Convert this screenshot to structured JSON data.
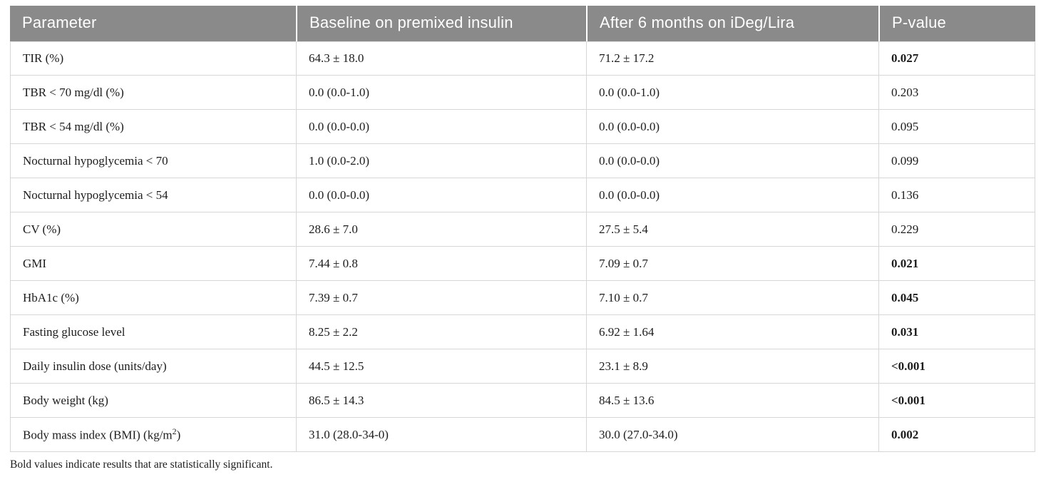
{
  "table": {
    "columns": [
      "Parameter",
      "Baseline on premixed insulin",
      "After 6 months on iDeg/Lira",
      "P-value"
    ],
    "rows": [
      {
        "parameter": "TIR (%)",
        "baseline": "64.3 ± 18.0",
        "after": "71.2 ± 17.2",
        "p": "0.027",
        "significant": true
      },
      {
        "parameter": "TBR < 70 mg/dl (%)",
        "baseline": "0.0 (0.0-1.0)",
        "after": "0.0 (0.0-1.0)",
        "p": "0.203",
        "significant": false
      },
      {
        "parameter": "TBR < 54 mg/dl (%)",
        "baseline": "0.0 (0.0-0.0)",
        "after": "0.0 (0.0-0.0)",
        "p": "0.095",
        "significant": false
      },
      {
        "parameter": "Nocturnal hypoglycemia < 70",
        "baseline": "1.0 (0.0-2.0)",
        "after": "0.0 (0.0-0.0)",
        "p": "0.099",
        "significant": false
      },
      {
        "parameter": "Nocturnal hypoglycemia < 54",
        "baseline": "0.0 (0.0-0.0)",
        "after": "0.0 (0.0-0.0)",
        "p": "0.136",
        "significant": false
      },
      {
        "parameter": "CV (%)",
        "baseline": "28.6 ± 7.0",
        "after": "27.5 ± 5.4",
        "p": "0.229",
        "significant": false
      },
      {
        "parameter": "GMI",
        "baseline": "7.44 ± 0.8",
        "after": "7.09 ± 0.7",
        "p": "0.021",
        "significant": true
      },
      {
        "parameter": "HbA1c (%)",
        "baseline": "7.39 ± 0.7",
        "after": "7.10 ± 0.7",
        "p": "0.045",
        "significant": true
      },
      {
        "parameter": "Fasting glucose level",
        "baseline": "8.25 ± 2.2",
        "after": "6.92 ± 1.64",
        "p": "0.031",
        "significant": true
      },
      {
        "parameter": "Daily insulin dose (units/day)",
        "baseline": "44.5 ± 12.5",
        "after": "23.1 ± 8.9",
        "p": "<0.001",
        "significant": true
      },
      {
        "parameter": "Body weight (kg)",
        "baseline": "86.5 ± 14.3",
        "after": "84.5 ± 13.6",
        "p": "<0.001",
        "significant": true
      },
      {
        "parameter": "Body mass index (BMI) (kg/m²)",
        "baseline": "31.0 (28.0-34-0)",
        "after": "30.0 (27.0-34.0)",
        "p": "0.002",
        "significant": true
      }
    ],
    "footnote": "Bold values indicate results that are statistically significant.",
    "colors": {
      "header_bg": "#8a8a8a",
      "header_text": "#ffffff",
      "border": "#d6d6d6",
      "body_text": "#1c1c1c"
    }
  }
}
